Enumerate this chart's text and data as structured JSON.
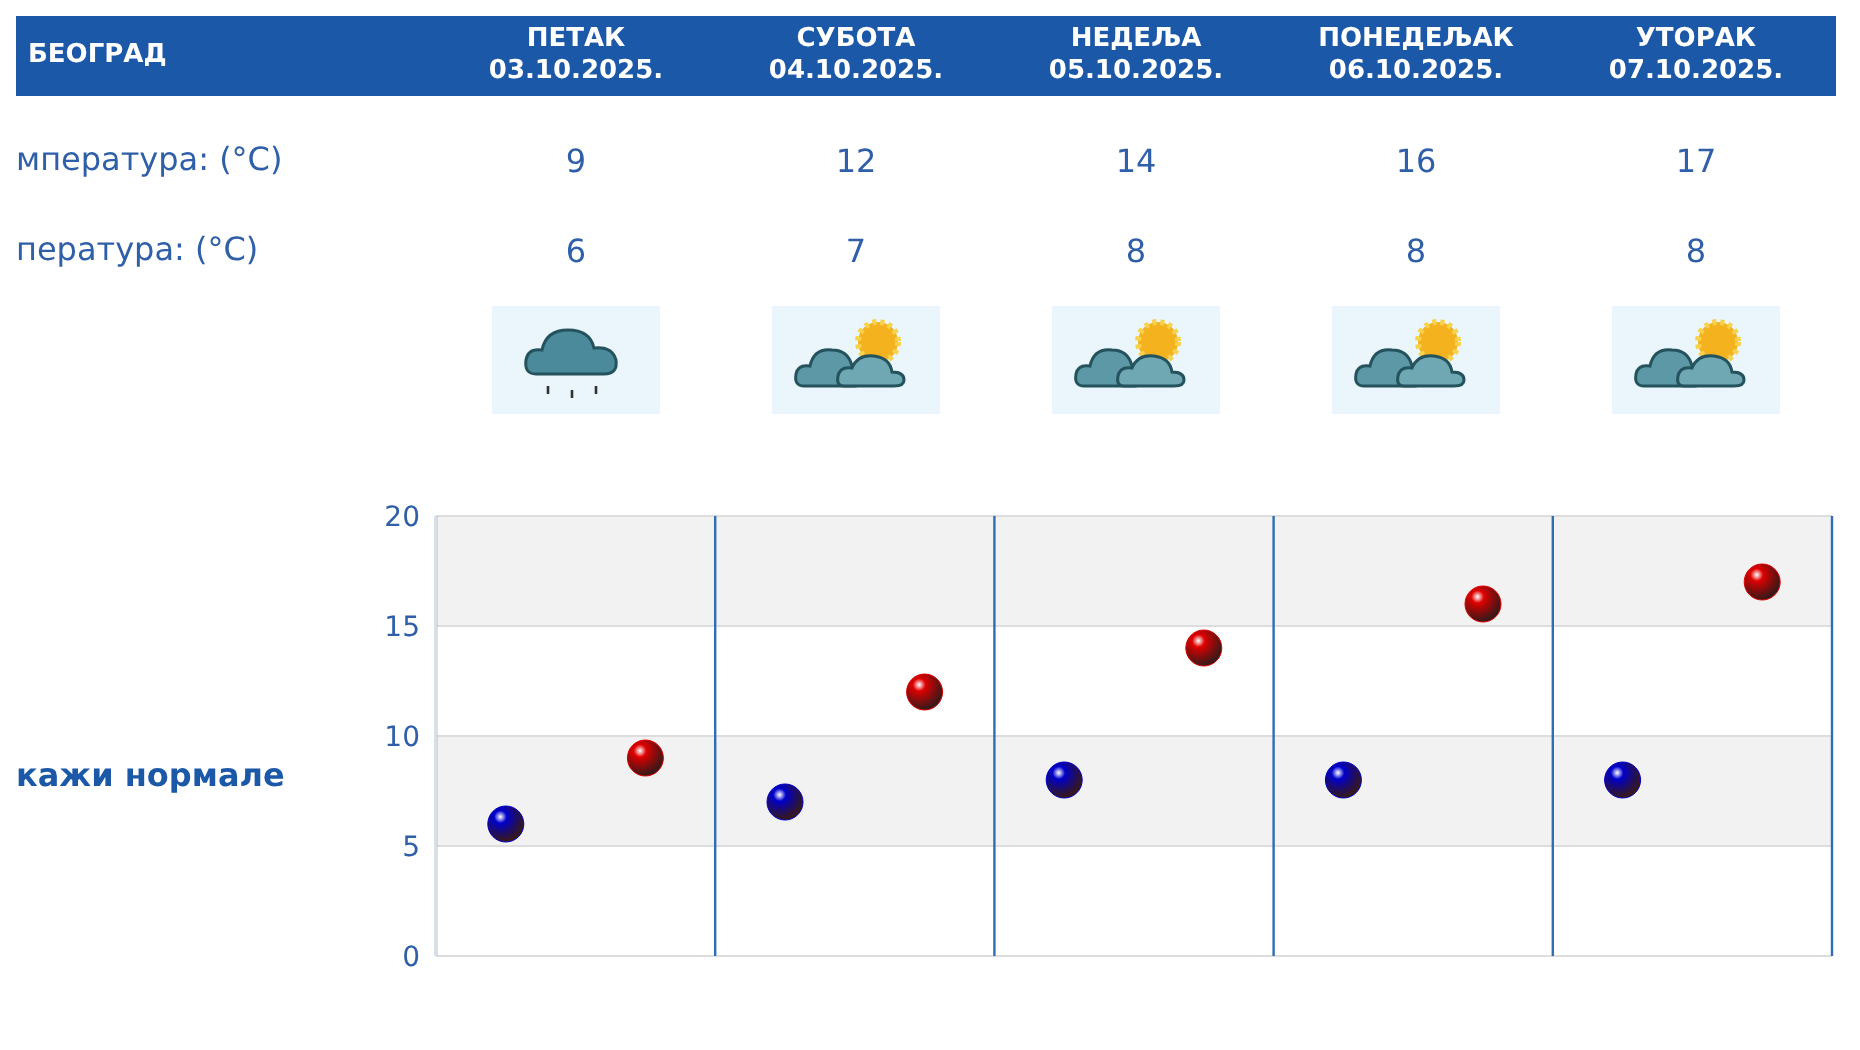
{
  "chart_data": {
    "type": "scatter",
    "title": "БЕОГРАД",
    "categories": [
      null,
      null,
      null,
      null,
      null
    ],
    "series": [
      {
        "color": "#e00000",
        "values": [
          9,
          12,
          14,
          16,
          17
        ]
      },
      {
        "color": "#0000cc",
        "values": [
          6,
          7,
          8,
          8,
          8
        ]
      }
    ],
    "data_labels": true,
    "marker": "circle",
    "grid": "y",
    "ylim": [
      0,
      20
    ],
    "yticks": [
      0,
      5,
      10,
      15,
      20
    ],
    "annotations": [
      "ПЕТАК\n03.10.2025.",
      "СУБОТА\n04.10.2025.",
      "НЕДЕЉА\n05.10.2025.",
      "ПОНЕДЕЉАК\n06.10.2025.",
      "УТОРАК\n07.10.2025.",
      "мпература: (°C)",
      "пература: (°C)",
      "кажи нормале"
    ]
  }
}
